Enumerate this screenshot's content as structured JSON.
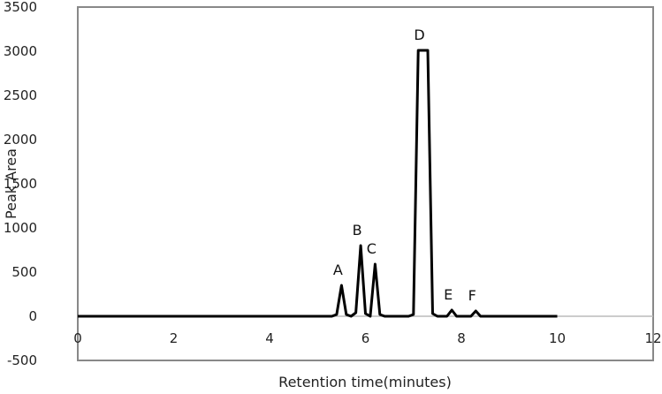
{
  "chart_data": {
    "type": "line",
    "title": "",
    "xlabel": "Retention time(minutes)",
    "ylabel": "Peak Area",
    "xlim": [
      0,
      12
    ],
    "ylim": [
      -500,
      3500
    ],
    "x_ticks": [
      "0",
      "2",
      "4",
      "6",
      "8",
      "10",
      "12"
    ],
    "y_ticks": [
      "-500",
      "0",
      "500",
      "1000",
      "1500",
      "2000",
      "2500",
      "3000",
      "3500"
    ],
    "grid": false,
    "legend": null,
    "series": [
      {
        "name": "Chromatogram",
        "x": [
          0,
          5.3,
          5.4,
          5.5,
          5.6,
          5.7,
          5.8,
          5.9,
          6.0,
          6.1,
          6.2,
          6.3,
          6.4,
          6.9,
          7.0,
          7.1,
          7.3,
          7.4,
          7.5,
          7.7,
          7.8,
          7.9,
          8.2,
          8.3,
          8.4,
          10
        ],
        "y": [
          0,
          0,
          20,
          350,
          20,
          0,
          40,
          800,
          30,
          0,
          590,
          20,
          0,
          0,
          20,
          3010,
          3010,
          30,
          0,
          0,
          70,
          0,
          0,
          60,
          0,
          0
        ]
      }
    ],
    "annotations": [
      {
        "label": "A",
        "x": 5.5,
        "y": 350
      },
      {
        "label": "B",
        "x": 5.9,
        "y": 800
      },
      {
        "label": "C",
        "x": 6.2,
        "y": 590
      },
      {
        "label": "D",
        "x": 7.2,
        "y": 3010
      },
      {
        "label": "E",
        "x": 7.8,
        "y": 70
      },
      {
        "label": "F",
        "x": 8.3,
        "y": 60
      }
    ]
  },
  "labels": {
    "xlabel": "Retention time(minutes)",
    "ylabel": "Peak Area"
  }
}
